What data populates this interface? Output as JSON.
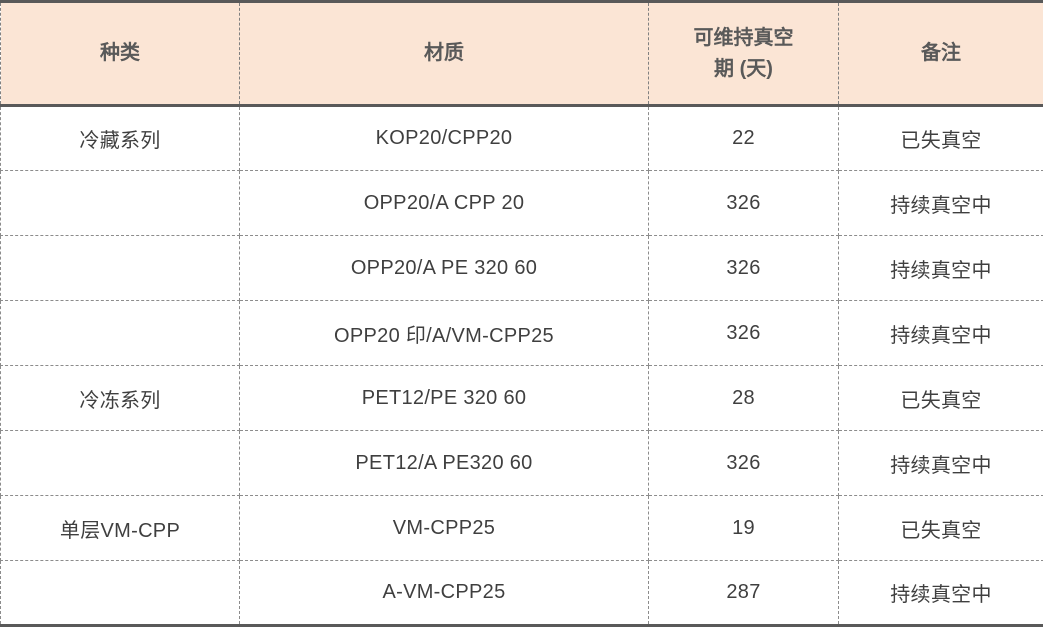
{
  "table": {
    "columns": [
      "种类",
      "材质",
      "可维持真空期 (天)",
      "备注"
    ],
    "rows": [
      [
        "冷藏系列",
        "KOP20/CPP20",
        "22",
        "已失真空"
      ],
      [
        "",
        "OPP20/A CPP 20",
        "326",
        "持续真空中"
      ],
      [
        "",
        "OPP20/A PE 320 60",
        "326",
        "持续真空中"
      ],
      [
        "",
        "OPP20 印/A/VM-CPP25",
        "326",
        "持续真空中"
      ],
      [
        "冷冻系列",
        "PET12/PE 320 60",
        "28",
        "已失真空"
      ],
      [
        "",
        "PET12/A PE320 60",
        "326",
        "持续真空中"
      ],
      [
        "单层VM-CPP",
        "VM-CPP25",
        "19",
        "已失真空"
      ],
      [
        "",
        "A-VM-CPP25",
        "287",
        "持续真空中"
      ]
    ],
    "colors": {
      "header_bg": "#fbe5d5",
      "thick_border": "#595959",
      "dashed_border": "#8c8c8c",
      "header_text": "#595959",
      "body_text": "#3f3f3f"
    }
  }
}
